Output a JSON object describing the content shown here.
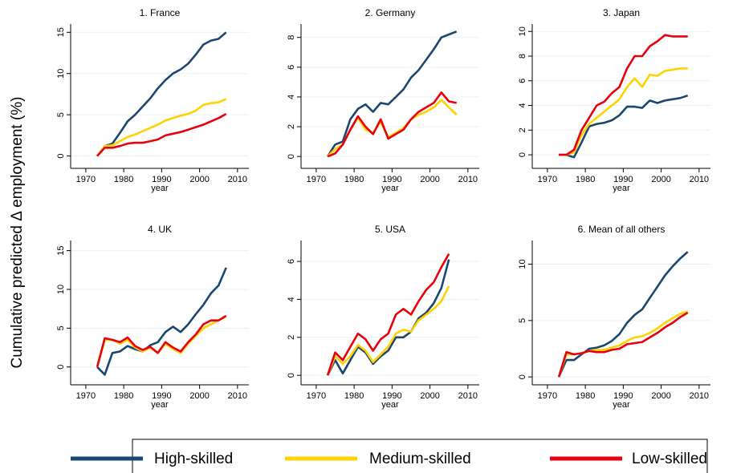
{
  "ylabel": "Cumulative predicted Δ employment (%)",
  "legend": [
    {
      "name": "High-skilled",
      "color": "#1a476f"
    },
    {
      "name": "Medium-skilled",
      "color": "#ffd200"
    },
    {
      "name": "Low-skilled",
      "color": "#e8000b"
    }
  ],
  "chart_data": [
    {
      "type": "line",
      "title": "1. France",
      "xlabel": "year",
      "x": [
        1973,
        1975,
        1977,
        1979,
        1981,
        1983,
        1985,
        1987,
        1989,
        1991,
        1993,
        1995,
        1997,
        1999,
        2001,
        2003,
        2005,
        2007
      ],
      "series": [
        {
          "values": [
            0,
            1.2,
            1.5,
            2.8,
            4.2,
            5.0,
            6.0,
            7.0,
            8.2,
            9.2,
            10.0,
            10.5,
            11.2,
            12.3,
            13.5,
            14.0,
            14.2,
            15.0
          ]
        },
        {
          "values": [
            0,
            1.2,
            1.3,
            1.8,
            2.3,
            2.6,
            3.0,
            3.4,
            3.8,
            4.3,
            4.6,
            4.9,
            5.1,
            5.5,
            6.2,
            6.4,
            6.5,
            6.9
          ]
        },
        {
          "values": [
            0,
            1.0,
            1.0,
            1.2,
            1.5,
            1.6,
            1.6,
            1.8,
            2.0,
            2.5,
            2.7,
            2.9,
            3.2,
            3.5,
            3.8,
            4.2,
            4.6,
            5.1
          ]
        }
      ],
      "xlim": [
        1966,
        2013
      ],
      "xticks": [
        1970,
        1980,
        1990,
        2000,
        2010
      ],
      "ylim": [
        -1.5,
        16
      ],
      "yticks": [
        0,
        5,
        10,
        15
      ],
      "grid": true
    },
    {
      "type": "line",
      "title": "2. Germany",
      "xlabel": "year",
      "x": [
        1973,
        1975,
        1977,
        1979,
        1981,
        1983,
        1985,
        1987,
        1989,
        1991,
        1993,
        1995,
        1997,
        1999,
        2001,
        2003,
        2005,
        2007
      ],
      "series": [
        {
          "values": [
            0,
            0.8,
            1.0,
            2.5,
            3.2,
            3.5,
            3.0,
            3.6,
            3.5,
            4.0,
            4.5,
            5.3,
            5.8,
            6.5,
            7.2,
            8.0,
            8.2,
            8.4
          ]
        },
        {
          "values": [
            0,
            0.5,
            0.8,
            1.8,
            2.6,
            1.8,
            1.6,
            2.3,
            1.3,
            1.6,
            1.9,
            2.5,
            2.8,
            3.0,
            3.3,
            3.8,
            3.3,
            2.8
          ]
        },
        {
          "values": [
            0,
            0.2,
            0.8,
            1.8,
            2.7,
            2.0,
            1.5,
            2.5,
            1.2,
            1.5,
            1.8,
            2.5,
            3.0,
            3.3,
            3.6,
            4.3,
            3.7,
            3.6
          ]
        }
      ],
      "xlim": [
        1966,
        2013
      ],
      "xticks": [
        1970,
        1980,
        1990,
        2000,
        2010
      ],
      "ylim": [
        -0.8,
        8.9
      ],
      "yticks": [
        0,
        2,
        4,
        6,
        8
      ],
      "grid": true
    },
    {
      "type": "line",
      "title": "3. Japan",
      "xlabel": "year",
      "x": [
        1973,
        1975,
        1977,
        1979,
        1981,
        1983,
        1985,
        1987,
        1989,
        1991,
        1993,
        1995,
        1997,
        1999,
        2001,
        2003,
        2005,
        2007
      ],
      "series": [
        {
          "values": [
            0,
            0,
            -0.2,
            1.0,
            2.3,
            2.5,
            2.6,
            2.8,
            3.2,
            3.9,
            3.9,
            3.8,
            4.4,
            4.2,
            4.4,
            4.5,
            4.6,
            4.8
          ]
        },
        {
          "values": [
            0,
            0,
            0.2,
            1.6,
            2.5,
            3.0,
            3.5,
            4.0,
            4.5,
            5.5,
            6.2,
            5.5,
            6.5,
            6.4,
            6.8,
            6.9,
            7.0,
            7.0
          ]
        },
        {
          "values": [
            0,
            0,
            0.4,
            2.0,
            3.0,
            4.0,
            4.3,
            5.0,
            5.5,
            7.0,
            8.0,
            8.0,
            8.8,
            9.2,
            9.7,
            9.6,
            9.6,
            9.6
          ]
        }
      ],
      "xlim": [
        1966,
        2013
      ],
      "xticks": [
        1970,
        1980,
        1990,
        2000,
        2010
      ],
      "ylim": [
        -1.1,
        10.6
      ],
      "yticks": [
        0,
        2,
        4,
        6,
        8,
        10
      ],
      "grid": true
    },
    {
      "type": "line",
      "title": "4. UK",
      "xlabel": "year",
      "x": [
        1973,
        1975,
        1977,
        1979,
        1981,
        1983,
        1985,
        1987,
        1989,
        1991,
        1993,
        1995,
        1997,
        1999,
        2001,
        2003,
        2005,
        2007
      ],
      "series": [
        {
          "values": [
            0,
            -1,
            1.8,
            2.0,
            2.7,
            2.3,
            2.0,
            2.8,
            3.2,
            4.5,
            5.2,
            4.5,
            5.5,
            6.8,
            8.0,
            9.5,
            10.5,
            12.8
          ]
        },
        {
          "values": [
            0,
            3.5,
            3.5,
            3.0,
            3.5,
            2.5,
            2.0,
            2.5,
            1.8,
            3.0,
            2.3,
            1.8,
            3.0,
            4.0,
            5.0,
            5.5,
            6.0,
            6.5
          ]
        },
        {
          "values": [
            0,
            3.7,
            3.5,
            3.2,
            3.8,
            2.7,
            2.2,
            2.6,
            1.8,
            3.2,
            2.5,
            2.0,
            3.2,
            4.2,
            5.5,
            6.0,
            6.0,
            6.6
          ]
        }
      ],
      "xlim": [
        1966,
        2013
      ],
      "xticks": [
        1970,
        1980,
        1990,
        2000,
        2010
      ],
      "ylim": [
        -2.3,
        16.3
      ],
      "yticks": [
        0,
        5,
        10,
        15
      ],
      "grid": true
    },
    {
      "type": "line",
      "title": "5. USA",
      "xlabel": "year",
      "x": [
        1973,
        1975,
        1977,
        1979,
        1981,
        1983,
        1985,
        1987,
        1989,
        1991,
        1993,
        1995,
        1997,
        1999,
        2001,
        2003,
        2005,
        2007
      ],
      "series": [
        {
          "values": [
            0,
            0.8,
            0.1,
            0.8,
            1.5,
            1.2,
            0.6,
            1.0,
            1.3,
            2.0,
            2.0,
            2.3,
            3.0,
            3.3,
            3.8,
            4.6,
            6.1,
            null
          ]
        },
        {
          "values": [
            0,
            1.0,
            0.6,
            1.0,
            1.6,
            1.3,
            0.7,
            1.1,
            1.5,
            2.2,
            2.4,
            2.3,
            2.9,
            3.2,
            3.5,
            3.9,
            4.7,
            null
          ]
        },
        {
          "values": [
            0,
            1.2,
            0.8,
            1.5,
            2.2,
            1.9,
            1.3,
            1.9,
            2.2,
            3.2,
            3.5,
            3.2,
            3.9,
            4.5,
            4.9,
            5.7,
            6.4,
            null
          ]
        }
      ],
      "xlim": [
        1966,
        2013
      ],
      "xticks": [
        1970,
        1980,
        1990,
        2000,
        2010
      ],
      "ylim": [
        -0.5,
        7.1
      ],
      "yticks": [
        0,
        2,
        4,
        6
      ],
      "grid": true
    },
    {
      "type": "line",
      "title": "6. Mean of all others",
      "xlabel": "year",
      "x": [
        1973,
        1975,
        1977,
        1979,
        1981,
        1983,
        1985,
        1987,
        1989,
        1991,
        1993,
        1995,
        1997,
        1999,
        2001,
        2003,
        2005,
        2007
      ],
      "series": [
        {
          "values": [
            0,
            1.5,
            1.5,
            2.0,
            2.5,
            2.6,
            2.8,
            3.2,
            3.8,
            4.8,
            5.5,
            6.0,
            7.0,
            8.0,
            9.0,
            9.8,
            10.5,
            11.1
          ]
        },
        {
          "values": [
            0,
            2.0,
            2.0,
            2.1,
            2.3,
            2.4,
            2.4,
            2.6,
            2.8,
            3.2,
            3.5,
            3.6,
            3.9,
            4.3,
            4.8,
            5.2,
            5.6,
            5.8
          ]
        },
        {
          "values": [
            0,
            2.2,
            2.0,
            2.1,
            2.3,
            2.2,
            2.2,
            2.4,
            2.5,
            2.9,
            3.0,
            3.1,
            3.5,
            3.9,
            4.4,
            4.8,
            5.3,
            5.7
          ]
        }
      ],
      "xlim": [
        1966,
        2013
      ],
      "xticks": [
        1970,
        1980,
        1990,
        2000,
        2010
      ],
      "ylim": [
        -0.7,
        12.1
      ],
      "yticks": [
        0,
        5,
        10
      ],
      "grid": true
    }
  ]
}
